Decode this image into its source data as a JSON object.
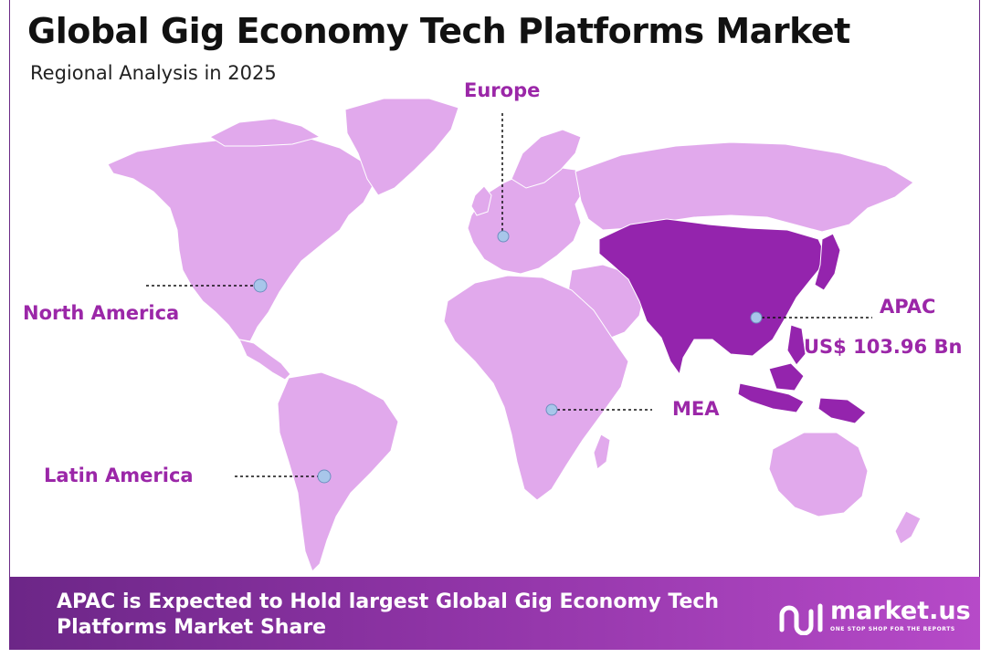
{
  "title": "Global Gig Economy Tech Platforms Market",
  "subtitle": "Regional Analysis in 2025",
  "regions": {
    "north_america": "North America",
    "europe": "Europe",
    "apac": "APAC",
    "apac_value": "US$ 103.96 Bn",
    "mea": "MEA",
    "latin_america": "Latin America"
  },
  "highlighted_region": "APAC",
  "colors": {
    "land": "#e1a9ec",
    "highlight": "#9424ad",
    "label": "#9b27a8",
    "marker": "#a8c6ea",
    "banner_start": "#6c2687",
    "banner_end": "#b64ac8"
  },
  "banner": {
    "text": "APAC is Expected to Hold largest Global Gig Economy Tech Platforms Market Share"
  },
  "brand": {
    "name": "market.us",
    "tagline": "ONE STOP SHOP FOR THE REPORTS",
    "icon": "market-us-logo-icon"
  }
}
